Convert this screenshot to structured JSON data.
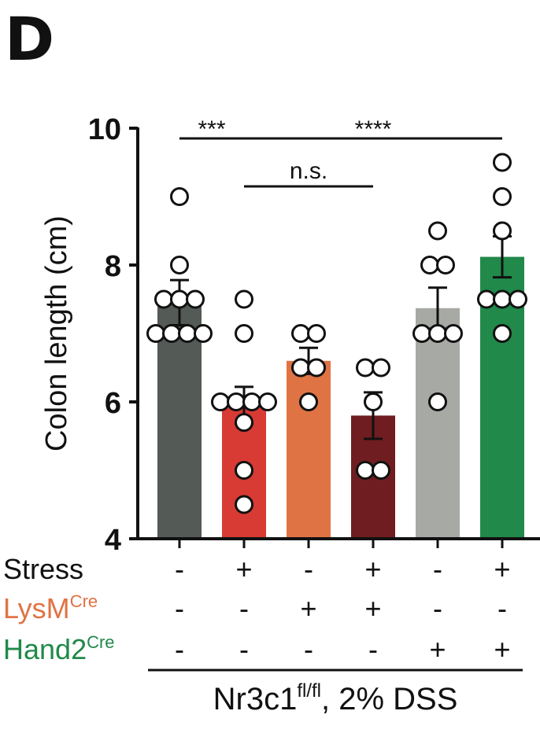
{
  "panel_label": "D",
  "chart_data": {
    "type": "bar",
    "ylabel": "Colon length (cm)",
    "ylim": [
      4,
      10
    ],
    "yticks": [
      "4",
      "6",
      "8",
      "10"
    ],
    "groups": [
      {
        "mean": 7.45,
        "sem": 0.33,
        "color": "#545a56",
        "points": [
          9.0,
          8.0,
          7.5,
          7.5,
          7.5,
          7.0,
          7.0,
          7.0,
          7.0
        ]
      },
      {
        "mean": 5.95,
        "sem": 0.27,
        "color": "#d83a34",
        "points": [
          7.5,
          7.0,
          6.0,
          6.0,
          6.0,
          6.0,
          5.7,
          5.0,
          4.5
        ]
      },
      {
        "mean": 6.6,
        "sem": 0.19,
        "color": "#e07343",
        "points": [
          7.0,
          7.0,
          6.5,
          6.5,
          6.0
        ]
      },
      {
        "mean": 5.8,
        "sem": 0.34,
        "color": "#6f1d20",
        "points": [
          6.5,
          6.5,
          6.0,
          5.0,
          5.0
        ]
      },
      {
        "mean": 7.37,
        "sem": 0.3,
        "color": "#a7a9a4",
        "points": [
          8.5,
          8.0,
          8.0,
          7.0,
          7.0,
          7.0,
          6.0
        ]
      },
      {
        "mean": 8.12,
        "sem": 0.3,
        "color": "#21894a",
        "points": [
          9.5,
          9.0,
          8.5,
          7.5,
          7.5,
          7.5,
          7.0
        ]
      }
    ],
    "significance": [
      {
        "from": 0,
        "to": 1,
        "label": "***",
        "y": 9.85
      },
      {
        "from": 1,
        "to": 5,
        "label": "****",
        "y": 9.85
      },
      {
        "from": 1,
        "to": 3,
        "label": "n.s.",
        "y": 9.15
      }
    ],
    "conditions": [
      {
        "label": "Stress",
        "superscript": "",
        "color": "#111111",
        "values": [
          "-",
          "+",
          "-",
          "+",
          "-",
          "+"
        ]
      },
      {
        "label": "LysM",
        "superscript": "Cre",
        "color": "#e07343",
        "values": [
          "-",
          "-",
          "+",
          "+",
          "-",
          "-"
        ]
      },
      {
        "label": "Hand2",
        "superscript": "Cre",
        "color": "#21894a",
        "values": [
          "-",
          "-",
          "-",
          "-",
          "+",
          "+"
        ]
      }
    ],
    "footer": {
      "main": "Nr3c1",
      "superscript": "fl/fl",
      "rest": ", 2% DSS"
    }
  }
}
